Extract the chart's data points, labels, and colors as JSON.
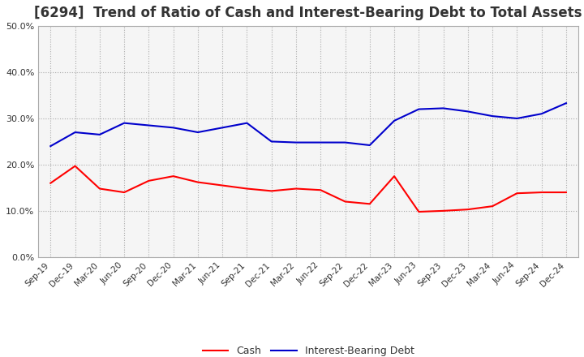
{
  "title": "[6294]  Trend of Ratio of Cash and Interest-Bearing Debt to Total Assets",
  "x_labels": [
    "Sep-19",
    "Dec-19",
    "Mar-20",
    "Jun-20",
    "Sep-20",
    "Dec-20",
    "Mar-21",
    "Jun-21",
    "Sep-21",
    "Dec-21",
    "Mar-22",
    "Jun-22",
    "Sep-22",
    "Dec-22",
    "Mar-23",
    "Jun-23",
    "Sep-23",
    "Dec-23",
    "Mar-24",
    "Jun-24",
    "Sep-24",
    "Dec-24"
  ],
  "cash": [
    0.16,
    0.197,
    0.148,
    0.14,
    0.165,
    0.175,
    0.162,
    0.155,
    0.148,
    0.143,
    0.148,
    0.145,
    0.12,
    0.115,
    0.175,
    0.098,
    0.1,
    0.103,
    0.11,
    0.138,
    0.14,
    0.14
  ],
  "interest_bearing_debt": [
    0.24,
    0.27,
    0.265,
    0.29,
    0.285,
    0.28,
    0.27,
    0.28,
    0.29,
    0.25,
    0.248,
    0.248,
    0.248,
    0.242,
    0.295,
    0.32,
    0.322,
    0.315,
    0.305,
    0.3,
    0.31,
    0.333
  ],
  "cash_color": "#ff0000",
  "debt_color": "#0000cc",
  "ylim": [
    0.0,
    0.5
  ],
  "yticks": [
    0.0,
    0.1,
    0.2,
    0.3,
    0.4,
    0.5
  ],
  "background_color": "#ffffff",
  "plot_bg_color": "#f5f5f5",
  "grid_color": "#aaaaaa",
  "title_fontsize": 12,
  "legend_labels": [
    "Cash",
    "Interest-Bearing Debt"
  ]
}
